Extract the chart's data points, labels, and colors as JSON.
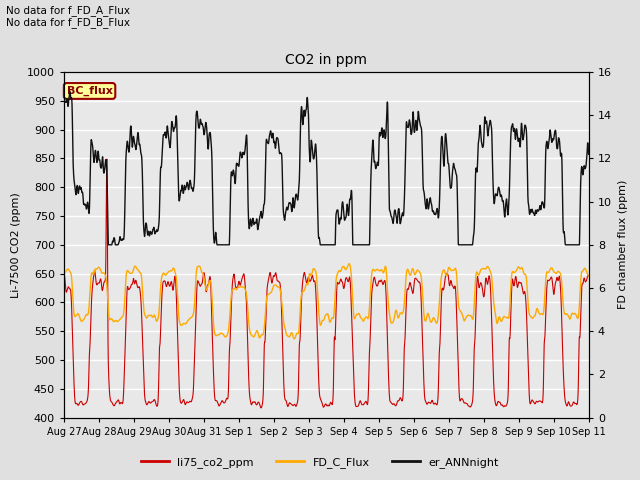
{
  "title": "CO2 in ppm",
  "ylabel_left": "Li-7500 CO2 (ppm)",
  "ylabel_right": "FD chamber flux (ppm)",
  "ylim_left": [
    400,
    1000
  ],
  "ylim_right": [
    0,
    16
  ],
  "xtick_labels": [
    "Aug 27",
    "Aug 28",
    "Aug 29",
    "Aug 30",
    "Aug 31",
    "Sep 1",
    "Sep 2",
    "Sep 3",
    "Sep 4",
    "Sep 5",
    "Sep 6",
    "Sep 7",
    "Sep 8",
    "Sep 9",
    "Sep 10",
    "Sep 11"
  ],
  "yticks_left": [
    400,
    450,
    500,
    550,
    600,
    650,
    700,
    750,
    800,
    850,
    900,
    950,
    1000
  ],
  "yticks_right": [
    0,
    2,
    4,
    6,
    8,
    10,
    12,
    14,
    16
  ],
  "line_colors": {
    "li75": "#cc0000",
    "FD_C": "#ffaa00",
    "er_ANN": "#111111"
  },
  "line_widths": {
    "li75": 0.8,
    "FD_C": 1.0,
    "er_ANN": 1.0
  },
  "legend_labels": [
    "li75_co2_ppm",
    "FD_C_Flux",
    "er_ANNnight"
  ],
  "annotation_text": "No data for f_FD_A_Flux\nNo data for f_FD_B_Flux",
  "bc_flux_label": "BC_flux",
  "bc_flux_color_face": "#ffff99",
  "bc_flux_color_edge": "#990000",
  "background_color": "#e0e0e0",
  "axes_bg_color": "#e8e8e8",
  "grid_color": "#ffffff",
  "n_days": 15,
  "total_points": 3600
}
